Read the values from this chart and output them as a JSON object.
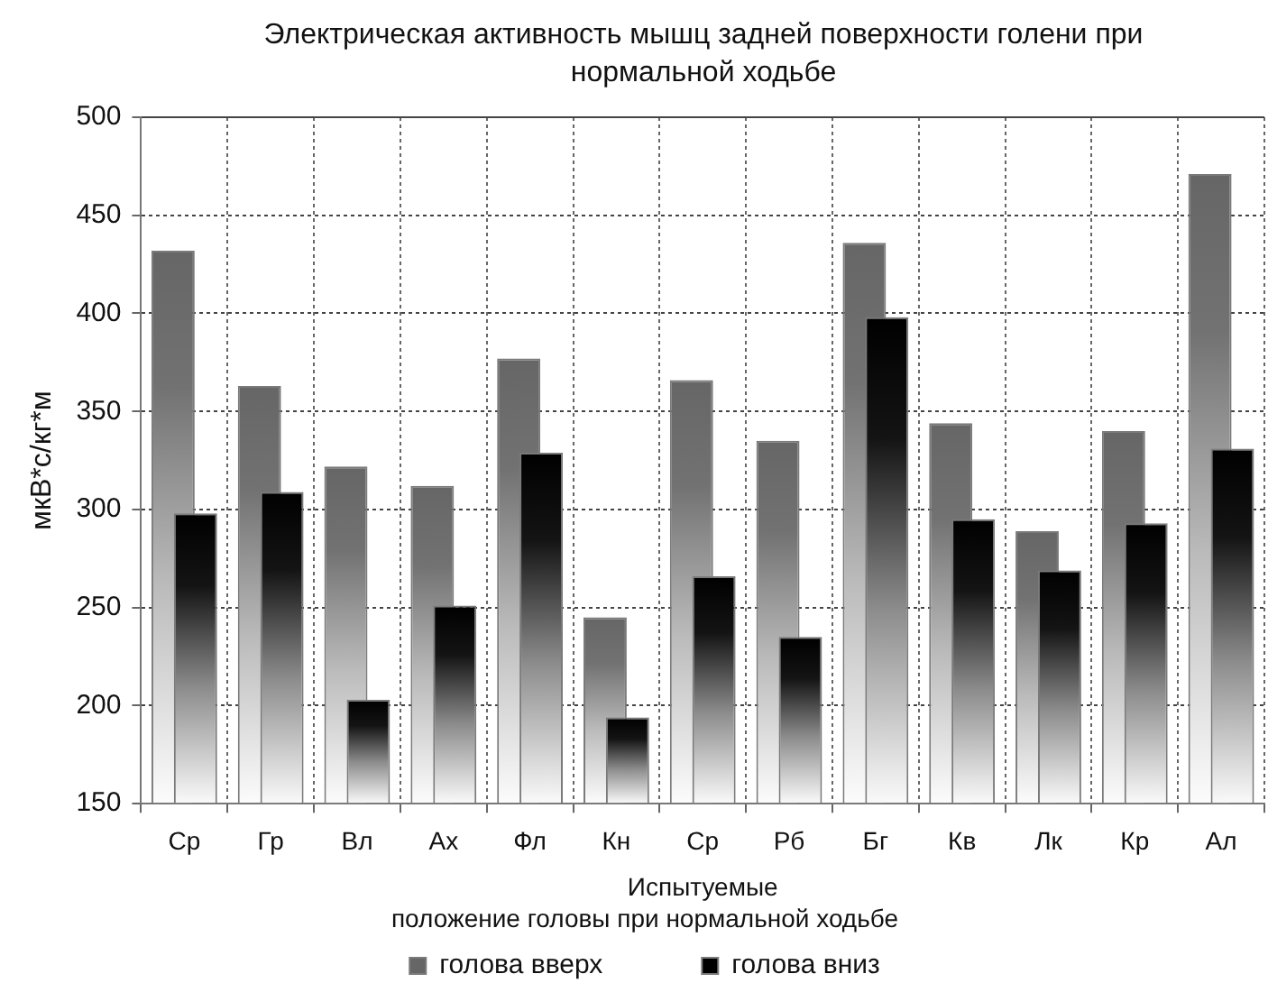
{
  "chart_data": {
    "type": "bar",
    "title": "Электрическая активность мышц задней поверхности голени при нормальной ходьбе",
    "xlabel": "Испытуемые",
    "ylabel": "мкВ*с/кг*м",
    "legend_title": "положение головы при нормальной ходьбе",
    "categories": [
      "Ср",
      "Гр",
      "Вл",
      "Ах",
      "Фл",
      "Кн",
      "Ср",
      "Рб",
      "Бг",
      "Кв",
      "Лк",
      "Кр",
      "Ал"
    ],
    "series": [
      {
        "name": "голова вверх",
        "color": "#666666",
        "values": [
          432,
          363,
          322,
          312,
          377,
          245,
          366,
          335,
          436,
          344,
          289,
          340,
          471
        ]
      },
      {
        "name": "голова вниз",
        "color": "#000000",
        "values": [
          298,
          309,
          203,
          251,
          329,
          194,
          266,
          235,
          398,
          295,
          269,
          293,
          331
        ]
      }
    ],
    "ylim": [
      150,
      500
    ],
    "yticks": [
      150,
      200,
      250,
      300,
      350,
      400,
      450,
      500
    ],
    "grid": true,
    "legend": "bottom"
  }
}
